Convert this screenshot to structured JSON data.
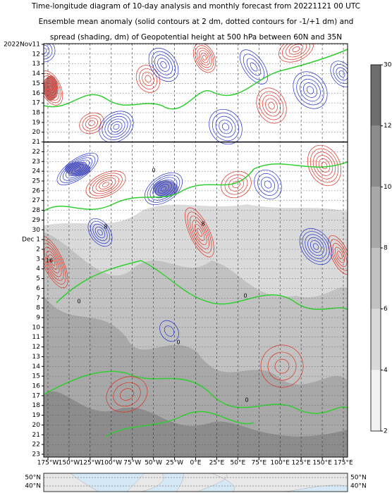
{
  "chart_data": {
    "type": "hovmoller",
    "title": [
      "Time-longitude diagram of 10-day analysis and monthly forecast from 20221121 00 UTC",
      "Ensemble mean anomaly (solid contours at 2 dm, dotted contours for -1/+1 dm) and",
      "spread (shading, dm) of Geopotential height at 500 hPa between 60N and 35N"
    ],
    "categories": [
      "2022Nov11",
      "12",
      "13",
      "14",
      "15",
      "16",
      "17",
      "18",
      "19",
      "20",
      "21",
      "22",
      "23",
      "24",
      "25",
      "26",
      "27",
      "28",
      "29",
      "30",
      "Dec 1",
      "2",
      "3",
      "4",
      "5",
      "6",
      "7",
      "8",
      "9",
      "10",
      "11",
      "12",
      "13",
      "14",
      "15",
      "16",
      "17",
      "18",
      "19",
      "20",
      "21",
      "22",
      "23"
    ],
    "highlight": [
      2,
      9,
      16,
      23,
      30,
      37
    ],
    "highlight_color": "#cc0000",
    "divider": 10,
    "xlim": [
      -180,
      180
    ],
    "xticks": [
      {
        "value": -175,
        "label": "175°W"
      },
      {
        "value": -150,
        "label": "150°W"
      },
      {
        "value": -125,
        "label": "125°W"
      },
      {
        "value": -100,
        "label": "100°W"
      },
      {
        "value": -75,
        "label": "75°W"
      },
      {
        "value": -50,
        "label": "50°W"
      },
      {
        "value": -25,
        "label": "25°W"
      },
      {
        "value": 0,
        "label": "0°E"
      },
      {
        "value": 25,
        "label": "25°E"
      },
      {
        "value": 50,
        "label": "50°E"
      },
      {
        "value": 75,
        "label": "75°E"
      },
      {
        "value": 100,
        "label": "100°E"
      },
      {
        "value": 125,
        "label": "125°E"
      },
      {
        "value": 150,
        "label": "150°E"
      },
      {
        "value": 175,
        "label": "175°E"
      }
    ],
    "grid": true,
    "positive_color": "#e03020",
    "negative_color": "#2030d0",
    "zero_color": "#30d030",
    "contour_labels": [
      0,
      0,
      0,
      0,
      8,
      16,
      8,
      0
    ],
    "colorbar": {
      "ticks": [
        2,
        4,
        6,
        8,
        10,
        12,
        30
      ],
      "colors": [
        "#f2f2f2",
        "#dadada",
        "#c2c2c2",
        "#a8a8a8",
        "#8c8c8c",
        "#6e6e6e"
      ]
    },
    "map": {
      "lat_labels": [
        "50°N",
        "40°N"
      ]
    }
  }
}
